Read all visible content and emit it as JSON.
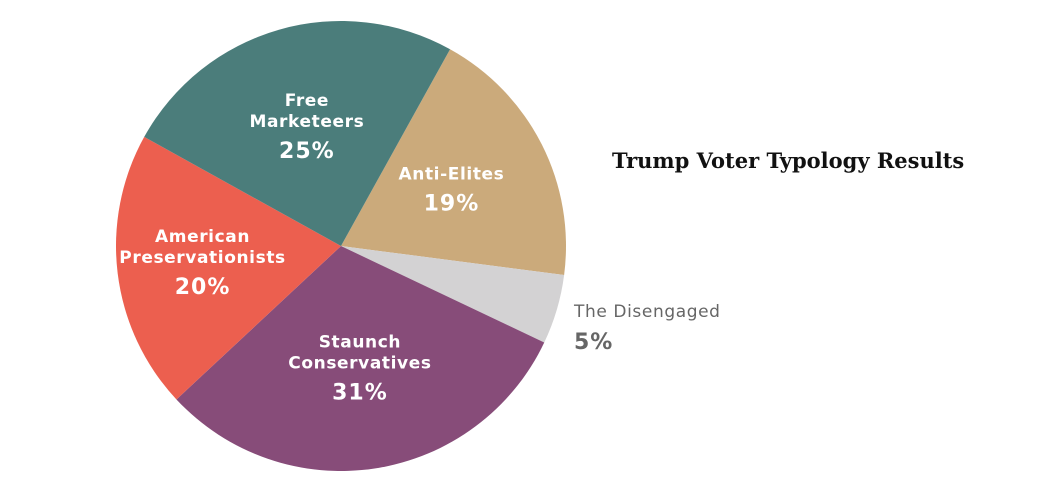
{
  "chart_data": {
    "type": "pie",
    "title": "Trump Voter Typology Results",
    "start_angle_deg": 29,
    "slices": [
      {
        "label_lines": [
          "Anti-Elites"
        ],
        "label": "Anti-Elites",
        "value": 19,
        "display": "19%",
        "color": "#cbaa7b",
        "label_position": "inside"
      },
      {
        "label_lines": [
          "The Disengaged"
        ],
        "label": "The Disengaged",
        "value": 5,
        "display": "5%",
        "color": "#d3d2d3",
        "label_position": "outside"
      },
      {
        "label_lines": [
          "Staunch",
          "Conservatives"
        ],
        "label": "Staunch Conservatives",
        "value": 31,
        "display": "31%",
        "color": "#874c79",
        "label_position": "inside"
      },
      {
        "label_lines": [
          "American",
          "Preservationists"
        ],
        "label": "American Preservationists",
        "value": 20,
        "display": "20%",
        "color": "#ec5f4f",
        "label_position": "inside"
      },
      {
        "label_lines": [
          "Free",
          "Marketeers"
        ],
        "label": "Free Marketeers",
        "value": 25,
        "display": "25%",
        "color": "#4b7d7b",
        "label_position": "inside"
      }
    ]
  }
}
